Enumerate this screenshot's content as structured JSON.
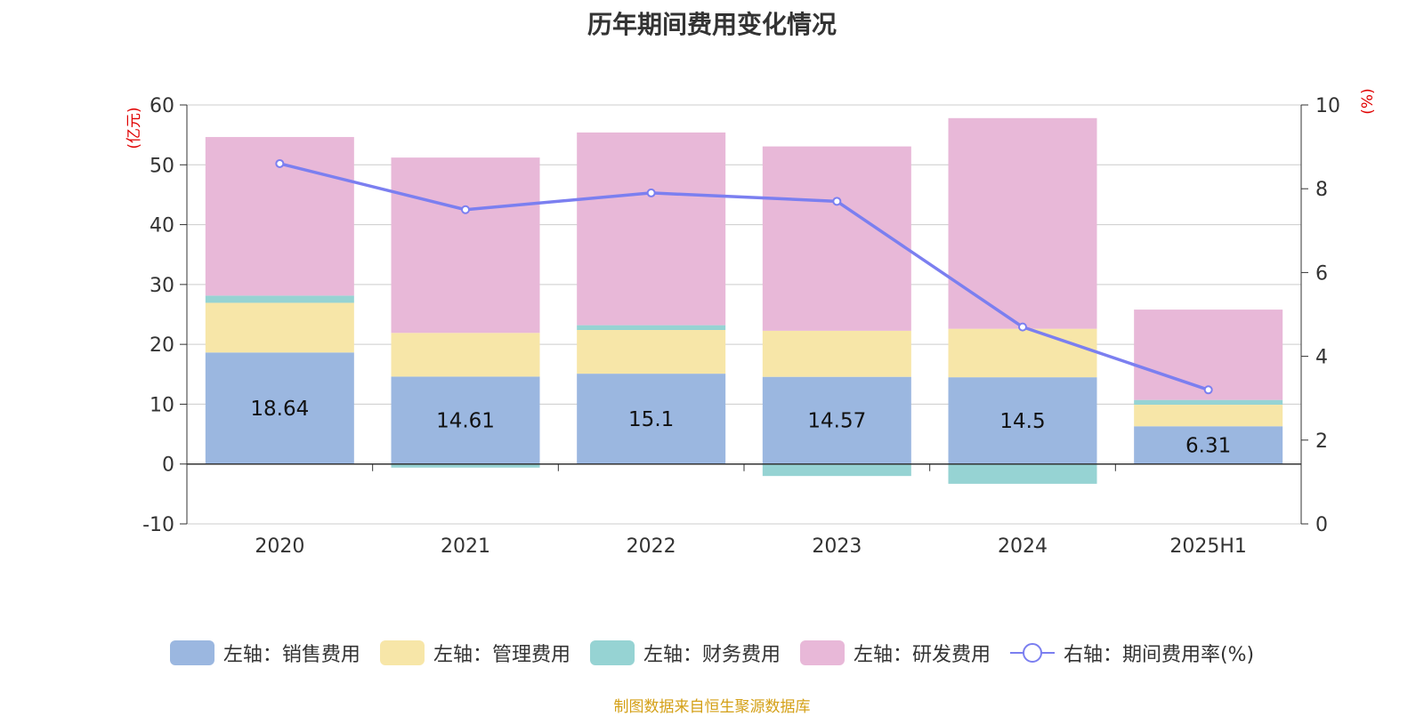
{
  "chart_data": {
    "type": "bar",
    "title": "历年期间费用变化情况",
    "categories": [
      "2020",
      "2021",
      "2022",
      "2023",
      "2024",
      "2025H1"
    ],
    "y_left": {
      "unit_label": "(亿元)",
      "range": [
        -10,
        60
      ],
      "ticks": [
        -10,
        0,
        10,
        20,
        30,
        40,
        50,
        60
      ]
    },
    "y_right": {
      "unit_label": "(%)",
      "range": [
        0,
        10
      ],
      "ticks": [
        0,
        2,
        4,
        6,
        8,
        10
      ]
    },
    "stacked": true,
    "series": [
      {
        "name": "左轴：销售费用",
        "axis": "left",
        "color": "#9bb7e0",
        "values": [
          18.64,
          14.61,
          15.1,
          14.57,
          14.5,
          6.31
        ],
        "data_labels": [
          "18.64",
          "14.61",
          "15.1",
          "14.57",
          "14.5",
          "6.31"
        ]
      },
      {
        "name": "左轴：管理费用",
        "axis": "left",
        "color": "#f7e6a8",
        "values": [
          8.3,
          7.3,
          7.3,
          7.7,
          8.1,
          3.6
        ]
      },
      {
        "name": "左轴：财务费用",
        "axis": "left",
        "color": "#96d3d3",
        "values": [
          1.2,
          -0.6,
          0.8,
          -2.0,
          -3.3,
          0.8
        ]
      },
      {
        "name": "左轴：研发费用",
        "axis": "left",
        "color": "#e8b8d8",
        "values": [
          26.5,
          29.3,
          32.2,
          30.8,
          35.2,
          15.1
        ]
      },
      {
        "name": "右轴：期间费用率(%)",
        "axis": "right",
        "type": "line",
        "color": "#7b7ff0",
        "values": [
          8.6,
          7.5,
          7.9,
          7.7,
          4.7,
          3.2
        ]
      }
    ],
    "grid": true,
    "legend_position": "bottom"
  },
  "source": "制图数据来自恒生聚源数据库"
}
